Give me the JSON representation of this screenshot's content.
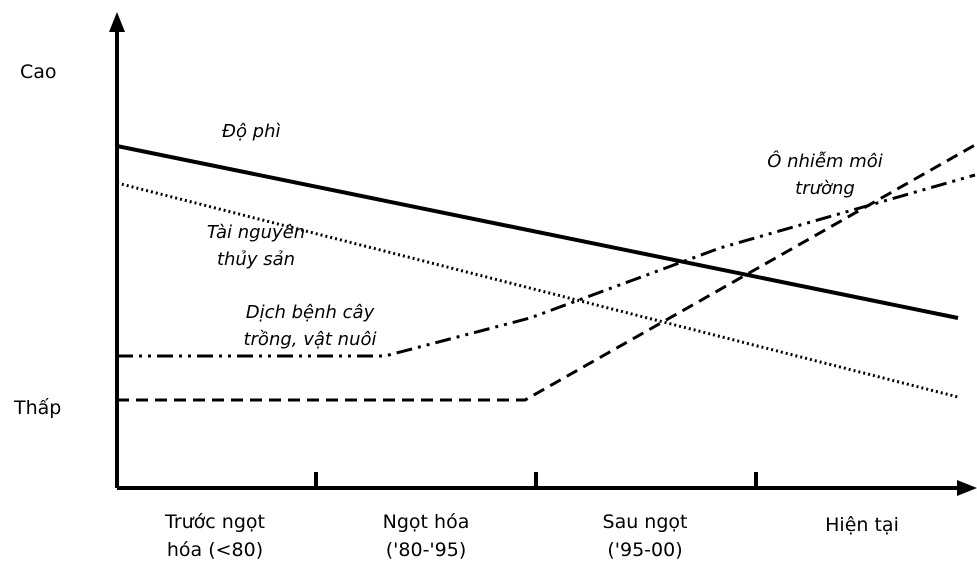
{
  "y_axis": {
    "labels": [
      "Cao",
      "Thấp"
    ]
  },
  "x_axis": {
    "categories": [
      [
        "Trước ngọt",
        "hóa (<80)"
      ],
      [
        "Ngọt hóa",
        "('80-'95)"
      ],
      [
        "Sau ngọt",
        "('95-00)"
      ],
      [
        "Hiện tại"
      ]
    ]
  },
  "lines": [
    {
      "label": [
        "Độ phì"
      ]
    },
    {
      "label": [
        "Tài nguyên",
        "thủy sản"
      ]
    },
    {
      "label": [
        "Dịch bệnh cây",
        "trồng, vật nuôi"
      ]
    },
    {
      "label": [
        "Ô nhiễm môi",
        "trường"
      ]
    }
  ]
}
